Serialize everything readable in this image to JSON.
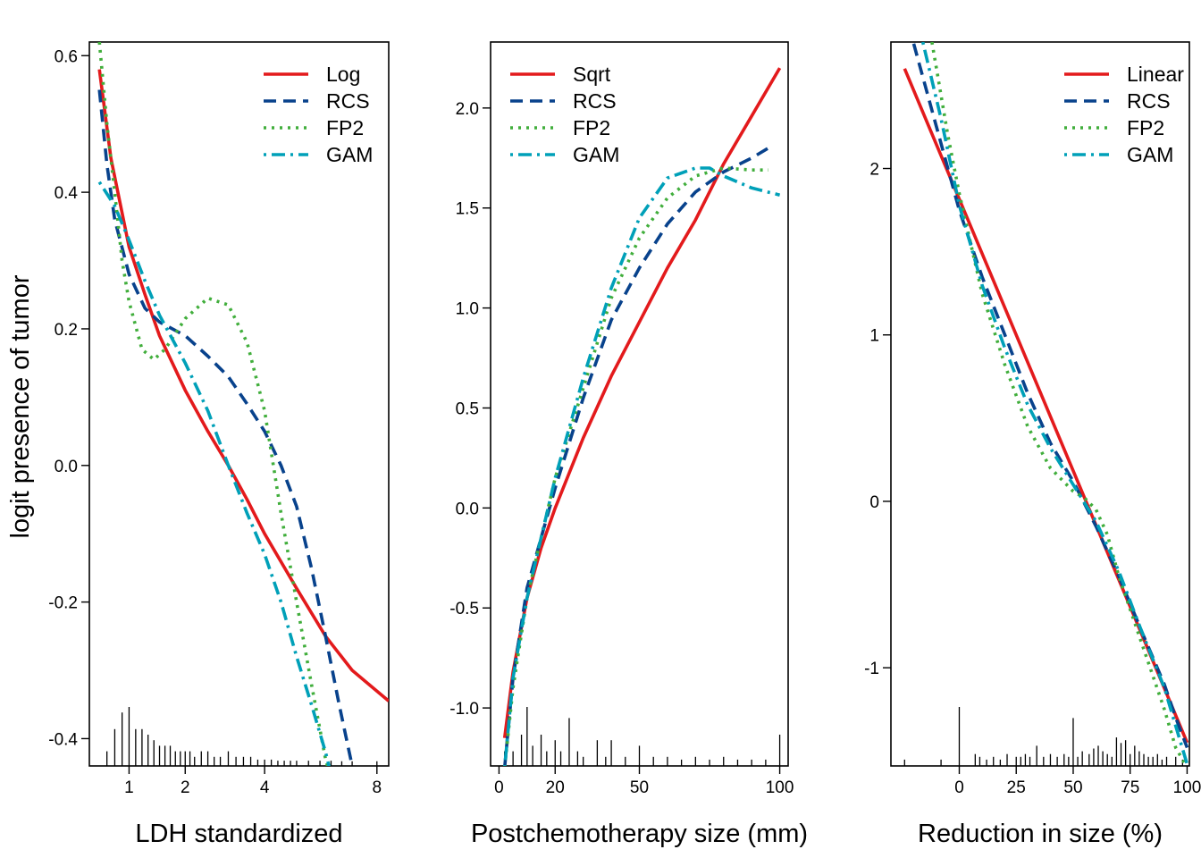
{
  "ylabel": "logit presence of tumor",
  "chart_data": [
    {
      "type": "line",
      "xlabel": "LDH standardized",
      "x_scale": "sqrt",
      "xlim": [
        0.5,
        8.5
      ],
      "ylim": [
        -0.44,
        0.62
      ],
      "x_ticks": [
        1,
        2,
        4,
        8
      ],
      "x_tick_labels": [
        "1",
        "2",
        "4",
        "8"
      ],
      "y_ticks": [
        0.6,
        0.4,
        0.2,
        0.0,
        -0.2,
        -0.4
      ],
      "y_tick_labels": [
        "0.6",
        "0.4",
        "0.2",
        "0.0",
        "-0.2",
        "-0.4"
      ],
      "legend_position": "top-right",
      "series": [
        {
          "name": "Log",
          "color": "#e31a1c",
          "style": "solid",
          "x": [
            0.61,
            0.75,
            1,
            1.25,
            1.5,
            2,
            2.5,
            3,
            3.5,
            4,
            5,
            6,
            7,
            8.5
          ],
          "y": [
            0.58,
            0.45,
            0.32,
            0.25,
            0.19,
            0.11,
            0.05,
            0.0,
            -0.05,
            -0.1,
            -0.18,
            -0.25,
            -0.3,
            -0.345
          ]
        },
        {
          "name": "RCS",
          "color": "#08428c",
          "style": "dashed",
          "x": [
            0.61,
            0.7,
            0.8,
            1,
            1.25,
            1.5,
            2,
            2.5,
            3,
            3.5,
            4,
            4.5,
            5,
            5.5,
            6,
            6.5,
            7,
            7.5
          ],
          "y": [
            0.55,
            0.44,
            0.36,
            0.28,
            0.23,
            0.21,
            0.19,
            0.16,
            0.13,
            0.09,
            0.05,
            0.0,
            -0.06,
            -0.15,
            -0.25,
            -0.35,
            -0.44,
            -0.5
          ]
        },
        {
          "name": "FP2",
          "color": "#41ae3c",
          "style": "dotted",
          "x": [
            0.61,
            0.7,
            0.8,
            0.9,
            1,
            1.2,
            1.4,
            1.6,
            2,
            2.5,
            3,
            3.5,
            4,
            4.5,
            5,
            5.5,
            6,
            6.5
          ],
          "y": [
            0.62,
            0.5,
            0.4,
            0.3,
            0.24,
            0.17,
            0.155,
            0.17,
            0.215,
            0.245,
            0.235,
            0.18,
            0.08,
            -0.07,
            -0.2,
            -0.32,
            -0.43,
            -0.5
          ]
        },
        {
          "name": "GAM",
          "color": "#00a0b8",
          "style": "dashdot",
          "x": [
            0.61,
            0.8,
            1,
            1.25,
            1.5,
            2,
            2.5,
            3,
            3.5,
            4,
            4.5,
            5,
            5.5,
            6,
            6.5
          ],
          "y": [
            0.415,
            0.38,
            0.33,
            0.27,
            0.22,
            0.15,
            0.08,
            0.0,
            -0.07,
            -0.13,
            -0.2,
            -0.28,
            -0.35,
            -0.42,
            -0.5
          ]
        }
      ],
      "rug": {
        "x": [
          0.7,
          0.8,
          0.9,
          1.0,
          1.1,
          1.2,
          1.3,
          1.4,
          1.5,
          1.6,
          1.7,
          1.8,
          1.9,
          2.0,
          2.1,
          2.2,
          2.35,
          2.5,
          2.65,
          2.8,
          3.0,
          3.2,
          3.4,
          3.6,
          3.8,
          4.0,
          4.2,
          4.4,
          4.6,
          4.8,
          5.0,
          5.4,
          5.8,
          6.2,
          6.6,
          7.0,
          8.0
        ],
        "counts": [
          2,
          6,
          9,
          10,
          6,
          6,
          5,
          4,
          3,
          3,
          3,
          2,
          2,
          2,
          2,
          1,
          2,
          2,
          1,
          1,
          2,
          1,
          1,
          1,
          0.5,
          0.5,
          0.5,
          0.3,
          0.3,
          0.3,
          0.3,
          0.3,
          0.3,
          0.3,
          0.2,
          0.2,
          0.2
        ],
        "max_count": 10
      }
    },
    {
      "type": "line",
      "xlabel": "Postchemotherapy size (mm)",
      "x_scale": "linear",
      "xlim": [
        -3,
        103
      ],
      "ylim": [
        -1.29,
        2.33
      ],
      "x_ticks": [
        0,
        20,
        50,
        100
      ],
      "x_tick_labels": [
        "0",
        "20",
        "50",
        "100"
      ],
      "y_ticks": [
        2.0,
        1.5,
        1.0,
        0.5,
        0.0,
        -0.5,
        -1.0
      ],
      "y_tick_labels": [
        "2.0",
        "1.5",
        "1.0",
        "0.5",
        "0.0",
        "-0.5",
        "-1.0"
      ],
      "legend_position": "top-left",
      "series": [
        {
          "name": "Sqrt",
          "color": "#e31a1c",
          "style": "solid",
          "x": [
            2,
            5,
            10,
            15,
            20,
            30,
            40,
            50,
            60,
            70,
            80,
            90,
            100
          ],
          "y": [
            -1.15,
            -0.82,
            -0.45,
            -0.2,
            0.0,
            0.35,
            0.66,
            0.93,
            1.2,
            1.44,
            1.72,
            1.96,
            2.2
          ]
        },
        {
          "name": "RCS",
          "color": "#08428c",
          "style": "dashed",
          "x": [
            2,
            5,
            10,
            15,
            20,
            30,
            40,
            50,
            60,
            70,
            80,
            90,
            96
          ],
          "y": [
            -1.3,
            -0.85,
            -0.4,
            -0.15,
            0.1,
            0.55,
            0.94,
            1.2,
            1.42,
            1.58,
            1.68,
            1.75,
            1.8
          ]
        },
        {
          "name": "FP2",
          "color": "#41ae3c",
          "style": "dotted",
          "x": [
            2,
            5,
            10,
            15,
            20,
            30,
            40,
            50,
            60,
            70,
            80,
            90,
            96
          ],
          "y": [
            -1.3,
            -0.9,
            -0.45,
            -0.15,
            0.15,
            0.6,
            1.05,
            1.35,
            1.55,
            1.66,
            1.7,
            1.69,
            1.69
          ]
        },
        {
          "name": "GAM",
          "color": "#00a0b8",
          "style": "dashdot",
          "x": [
            2,
            5,
            10,
            15,
            20,
            30,
            40,
            50,
            60,
            70,
            75,
            80,
            90,
            100
          ],
          "y": [
            -1.3,
            -0.85,
            -0.45,
            -0.15,
            0.15,
            0.65,
            1.1,
            1.45,
            1.65,
            1.7,
            1.7,
            1.66,
            1.6,
            1.565
          ]
        }
      ],
      "rug": {
        "x": [
          2,
          5,
          8,
          10,
          12,
          15,
          17,
          20,
          22,
          25,
          28,
          30,
          35,
          38,
          40,
          45,
          50,
          55,
          60,
          65,
          70,
          75,
          80,
          85,
          90,
          95,
          100
        ],
        "counts": [
          2,
          2,
          5,
          10,
          3,
          5,
          2,
          4,
          2,
          8,
          2,
          1,
          4,
          1,
          4,
          1,
          3,
          1,
          1,
          0.5,
          1,
          0.5,
          1,
          0.5,
          0.5,
          0.5,
          5
        ],
        "max_count": 10
      }
    },
    {
      "type": "line",
      "xlabel": "Reduction in size (%)",
      "x_scale": "linear",
      "xlim": [
        -30,
        101
      ],
      "ylim": [
        -1.59,
        2.76
      ],
      "x_ticks": [
        0,
        25,
        50,
        75,
        100
      ],
      "x_tick_labels": [
        "0",
        "25",
        "50",
        "75",
        "100"
      ],
      "y_ticks": [
        2,
        1,
        0,
        -1
      ],
      "y_tick_labels": [
        "2",
        "1",
        "0",
        "-1"
      ],
      "legend_position": "top-right",
      "series": [
        {
          "name": "Linear",
          "color": "#e31a1c",
          "style": "solid",
          "x": [
            -24,
            100
          ],
          "y": [
            2.6,
            -1.45
          ]
        },
        {
          "name": "RCS",
          "color": "#08428c",
          "style": "dashed",
          "x": [
            -20,
            -10,
            0,
            10,
            20,
            30,
            40,
            50,
            60,
            70,
            80,
            90,
            95,
            100
          ],
          "y": [
            2.75,
            2.25,
            1.75,
            1.35,
            1.0,
            0.65,
            0.35,
            0.12,
            -0.15,
            -0.45,
            -0.78,
            -1.1,
            -1.3,
            -1.48
          ]
        },
        {
          "name": "FP2",
          "color": "#41ae3c",
          "style": "dotted",
          "x": [
            -12,
            -5,
            0,
            10,
            20,
            30,
            40,
            50,
            55,
            60,
            65,
            70,
            80,
            90,
            95,
            100
          ],
          "y": [
            2.76,
            2.2,
            1.85,
            1.25,
            0.82,
            0.45,
            0.2,
            0.06,
            0.02,
            -0.05,
            -0.2,
            -0.45,
            -0.85,
            -1.25,
            -1.48,
            -1.6
          ]
        },
        {
          "name": "GAM",
          "color": "#00a0b8",
          "style": "dashdot",
          "x": [
            -16,
            -8,
            0,
            10,
            20,
            30,
            40,
            50,
            60,
            70,
            80,
            90,
            95,
            100
          ],
          "y": [
            2.76,
            2.3,
            1.78,
            1.3,
            0.92,
            0.58,
            0.32,
            0.1,
            -0.12,
            -0.42,
            -0.78,
            -1.12,
            -1.35,
            -1.58
          ]
        }
      ],
      "rug": {
        "x": [
          -24,
          -8,
          0,
          7,
          9,
          12,
          15,
          18,
          21,
          25,
          27,
          29,
          31,
          34,
          37,
          40,
          43,
          46,
          48,
          50,
          52,
          54,
          57,
          59,
          61,
          63,
          65,
          67,
          69,
          71,
          73,
          75,
          77,
          79,
          81,
          83,
          85,
          87,
          89,
          91,
          95,
          98
        ],
        "counts": [
          0.5,
          0.5,
          10,
          1.5,
          1,
          0.5,
          1,
          0.5,
          1.5,
          1,
          1,
          1.5,
          1,
          3,
          1,
          1.5,
          1,
          1.5,
          1,
          8,
          1,
          2,
          1.5,
          2.5,
          3,
          2,
          1.5,
          1,
          4.5,
          3.5,
          4,
          1.5,
          3,
          2,
          1.5,
          1,
          1,
          1.5,
          0.5,
          1,
          1,
          0.5
        ],
        "max_count": 10
      }
    }
  ]
}
